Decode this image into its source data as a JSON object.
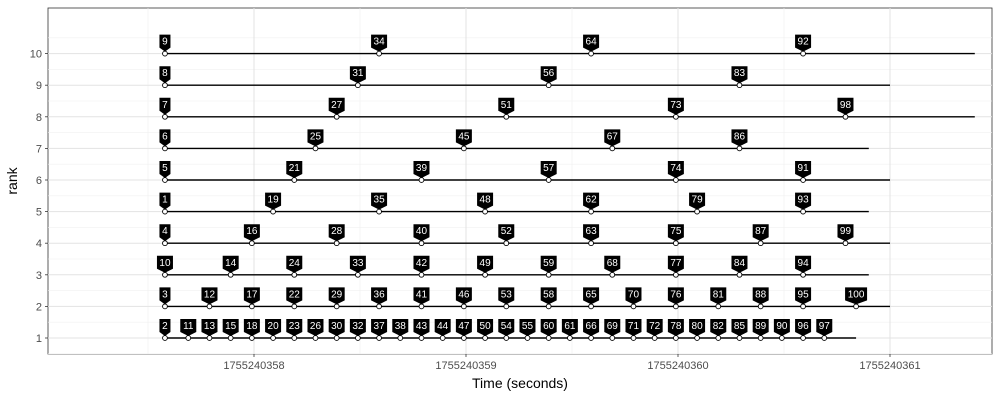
{
  "chart_data": {
    "type": "timeline",
    "xlabel": "Time (seconds)",
    "ylabel": "rank",
    "xlim": [
      1755240357.5,
      1755240361.4
    ],
    "ylim": [
      0.5,
      11
    ],
    "x_ticks": [
      1755240358,
      1755240359,
      1755240360,
      1755240361
    ],
    "x_tick_labels": [
      "1755240358",
      "1755240359",
      "1755240360",
      "1755240361"
    ],
    "y_ticks": [
      1,
      2,
      3,
      4,
      5,
      6,
      7,
      8,
      9,
      10
    ],
    "y_tick_labels": [
      "1",
      "2",
      "3",
      "4",
      "5",
      "6",
      "7",
      "8",
      "9",
      "10"
    ],
    "grid": true,
    "rows": [
      {
        "rank": 1,
        "start": 1755240357.58,
        "end": 1755240360.84,
        "events": [
          {
            "label": "2",
            "t": 1755240357.58
          },
          {
            "label": "11",
            "t": 1755240357.69
          },
          {
            "label": "13",
            "t": 1755240357.79
          },
          {
            "label": "15",
            "t": 1755240357.89
          },
          {
            "label": "18",
            "t": 1755240357.99
          },
          {
            "label": "20",
            "t": 1755240358.09
          },
          {
            "label": "23",
            "t": 1755240358.19
          },
          {
            "label": "26",
            "t": 1755240358.29
          },
          {
            "label": "30",
            "t": 1755240358.39
          },
          {
            "label": "32",
            "t": 1755240358.49
          },
          {
            "label": "37",
            "t": 1755240358.59
          },
          {
            "label": "38",
            "t": 1755240358.69
          },
          {
            "label": "43",
            "t": 1755240358.79
          },
          {
            "label": "44",
            "t": 1755240358.89
          },
          {
            "label": "47",
            "t": 1755240358.99
          },
          {
            "label": "50",
            "t": 1755240359.09
          },
          {
            "label": "54",
            "t": 1755240359.19
          },
          {
            "label": "55",
            "t": 1755240359.29
          },
          {
            "label": "60",
            "t": 1755240359.39
          },
          {
            "label": "61",
            "t": 1755240359.49
          },
          {
            "label": "66",
            "t": 1755240359.59
          },
          {
            "label": "69",
            "t": 1755240359.69
          },
          {
            "label": "71",
            "t": 1755240359.79
          },
          {
            "label": "72",
            "t": 1755240359.89
          },
          {
            "label": "78",
            "t": 1755240359.99
          },
          {
            "label": "80",
            "t": 1755240360.09
          },
          {
            "label": "82",
            "t": 1755240360.19
          },
          {
            "label": "85",
            "t": 1755240360.29
          },
          {
            "label": "89",
            "t": 1755240360.39
          },
          {
            "label": "90",
            "t": 1755240360.49
          },
          {
            "label": "96",
            "t": 1755240360.59
          },
          {
            "label": "97",
            "t": 1755240360.69
          }
        ]
      },
      {
        "rank": 2,
        "start": 1755240357.58,
        "end": 1755240361.0,
        "events": [
          {
            "label": "3",
            "t": 1755240357.58
          },
          {
            "label": "12",
            "t": 1755240357.79
          },
          {
            "label": "17",
            "t": 1755240357.99
          },
          {
            "label": "22",
            "t": 1755240358.19
          },
          {
            "label": "29",
            "t": 1755240358.39
          },
          {
            "label": "36",
            "t": 1755240358.59
          },
          {
            "label": "41",
            "t": 1755240358.79
          },
          {
            "label": "46",
            "t": 1755240358.99
          },
          {
            "label": "53",
            "t": 1755240359.19
          },
          {
            "label": "58",
            "t": 1755240359.39
          },
          {
            "label": "65",
            "t": 1755240359.59
          },
          {
            "label": "70",
            "t": 1755240359.79
          },
          {
            "label": "76",
            "t": 1755240359.99
          },
          {
            "label": "81",
            "t": 1755240360.19
          },
          {
            "label": "88",
            "t": 1755240360.39
          },
          {
            "label": "95",
            "t": 1755240360.59
          },
          {
            "label": "100",
            "t": 1755240360.84
          }
        ]
      },
      {
        "rank": 3,
        "start": 1755240357.58,
        "end": 1755240360.9,
        "events": [
          {
            "label": "10",
            "t": 1755240357.58
          },
          {
            "label": "14",
            "t": 1755240357.89
          },
          {
            "label": "24",
            "t": 1755240358.19
          },
          {
            "label": "33",
            "t": 1755240358.49
          },
          {
            "label": "42",
            "t": 1755240358.79
          },
          {
            "label": "49",
            "t": 1755240359.09
          },
          {
            "label": "59",
            "t": 1755240359.39
          },
          {
            "label": "68",
            "t": 1755240359.69
          },
          {
            "label": "77",
            "t": 1755240359.99
          },
          {
            "label": "84",
            "t": 1755240360.29
          },
          {
            "label": "94",
            "t": 1755240360.59
          }
        ]
      },
      {
        "rank": 4,
        "start": 1755240357.58,
        "end": 1755240361.0,
        "events": [
          {
            "label": "4",
            "t": 1755240357.58
          },
          {
            "label": "16",
            "t": 1755240357.99
          },
          {
            "label": "28",
            "t": 1755240358.39
          },
          {
            "label": "40",
            "t": 1755240358.79
          },
          {
            "label": "52",
            "t": 1755240359.19
          },
          {
            "label": "63",
            "t": 1755240359.59
          },
          {
            "label": "75",
            "t": 1755240359.99
          },
          {
            "label": "87",
            "t": 1755240360.39
          },
          {
            "label": "99",
            "t": 1755240360.79
          }
        ]
      },
      {
        "rank": 5,
        "start": 1755240357.58,
        "end": 1755240360.9,
        "events": [
          {
            "label": "1",
            "t": 1755240357.58
          },
          {
            "label": "19",
            "t": 1755240358.09
          },
          {
            "label": "35",
            "t": 1755240358.59
          },
          {
            "label": "48",
            "t": 1755240359.09
          },
          {
            "label": "62",
            "t": 1755240359.59
          },
          {
            "label": "79",
            "t": 1755240360.09
          },
          {
            "label": "93",
            "t": 1755240360.59
          }
        ]
      },
      {
        "rank": 6,
        "start": 1755240357.58,
        "end": 1755240361.0,
        "events": [
          {
            "label": "5",
            "t": 1755240357.58
          },
          {
            "label": "21",
            "t": 1755240358.19
          },
          {
            "label": "39",
            "t": 1755240358.79
          },
          {
            "label": "57",
            "t": 1755240359.39
          },
          {
            "label": "74",
            "t": 1755240359.99
          },
          {
            "label": "91",
            "t": 1755240360.59
          }
        ]
      },
      {
        "rank": 7,
        "start": 1755240357.58,
        "end": 1755240360.9,
        "events": [
          {
            "label": "6",
            "t": 1755240357.58
          },
          {
            "label": "25",
            "t": 1755240358.29
          },
          {
            "label": "45",
            "t": 1755240358.99
          },
          {
            "label": "67",
            "t": 1755240359.69
          },
          {
            "label": "86",
            "t": 1755240360.29
          }
        ]
      },
      {
        "rank": 8,
        "start": 1755240357.58,
        "end": 1755240361.4,
        "events": [
          {
            "label": "7",
            "t": 1755240357.58
          },
          {
            "label": "27",
            "t": 1755240358.39
          },
          {
            "label": "51",
            "t": 1755240359.19
          },
          {
            "label": "73",
            "t": 1755240359.99
          },
          {
            "label": "98",
            "t": 1755240360.79
          }
        ]
      },
      {
        "rank": 9,
        "start": 1755240357.58,
        "end": 1755240361.0,
        "events": [
          {
            "label": "8",
            "t": 1755240357.58
          },
          {
            "label": "31",
            "t": 1755240358.49
          },
          {
            "label": "56",
            "t": 1755240359.39
          },
          {
            "label": "83",
            "t": 1755240360.29
          }
        ]
      },
      {
        "rank": 10,
        "start": 1755240357.58,
        "end": 1755240361.4,
        "events": [
          {
            "label": "9",
            "t": 1755240357.58
          },
          {
            "label": "34",
            "t": 1755240358.59
          },
          {
            "label": "64",
            "t": 1755240359.59
          },
          {
            "label": "92",
            "t": 1755240360.59
          }
        ]
      }
    ]
  }
}
